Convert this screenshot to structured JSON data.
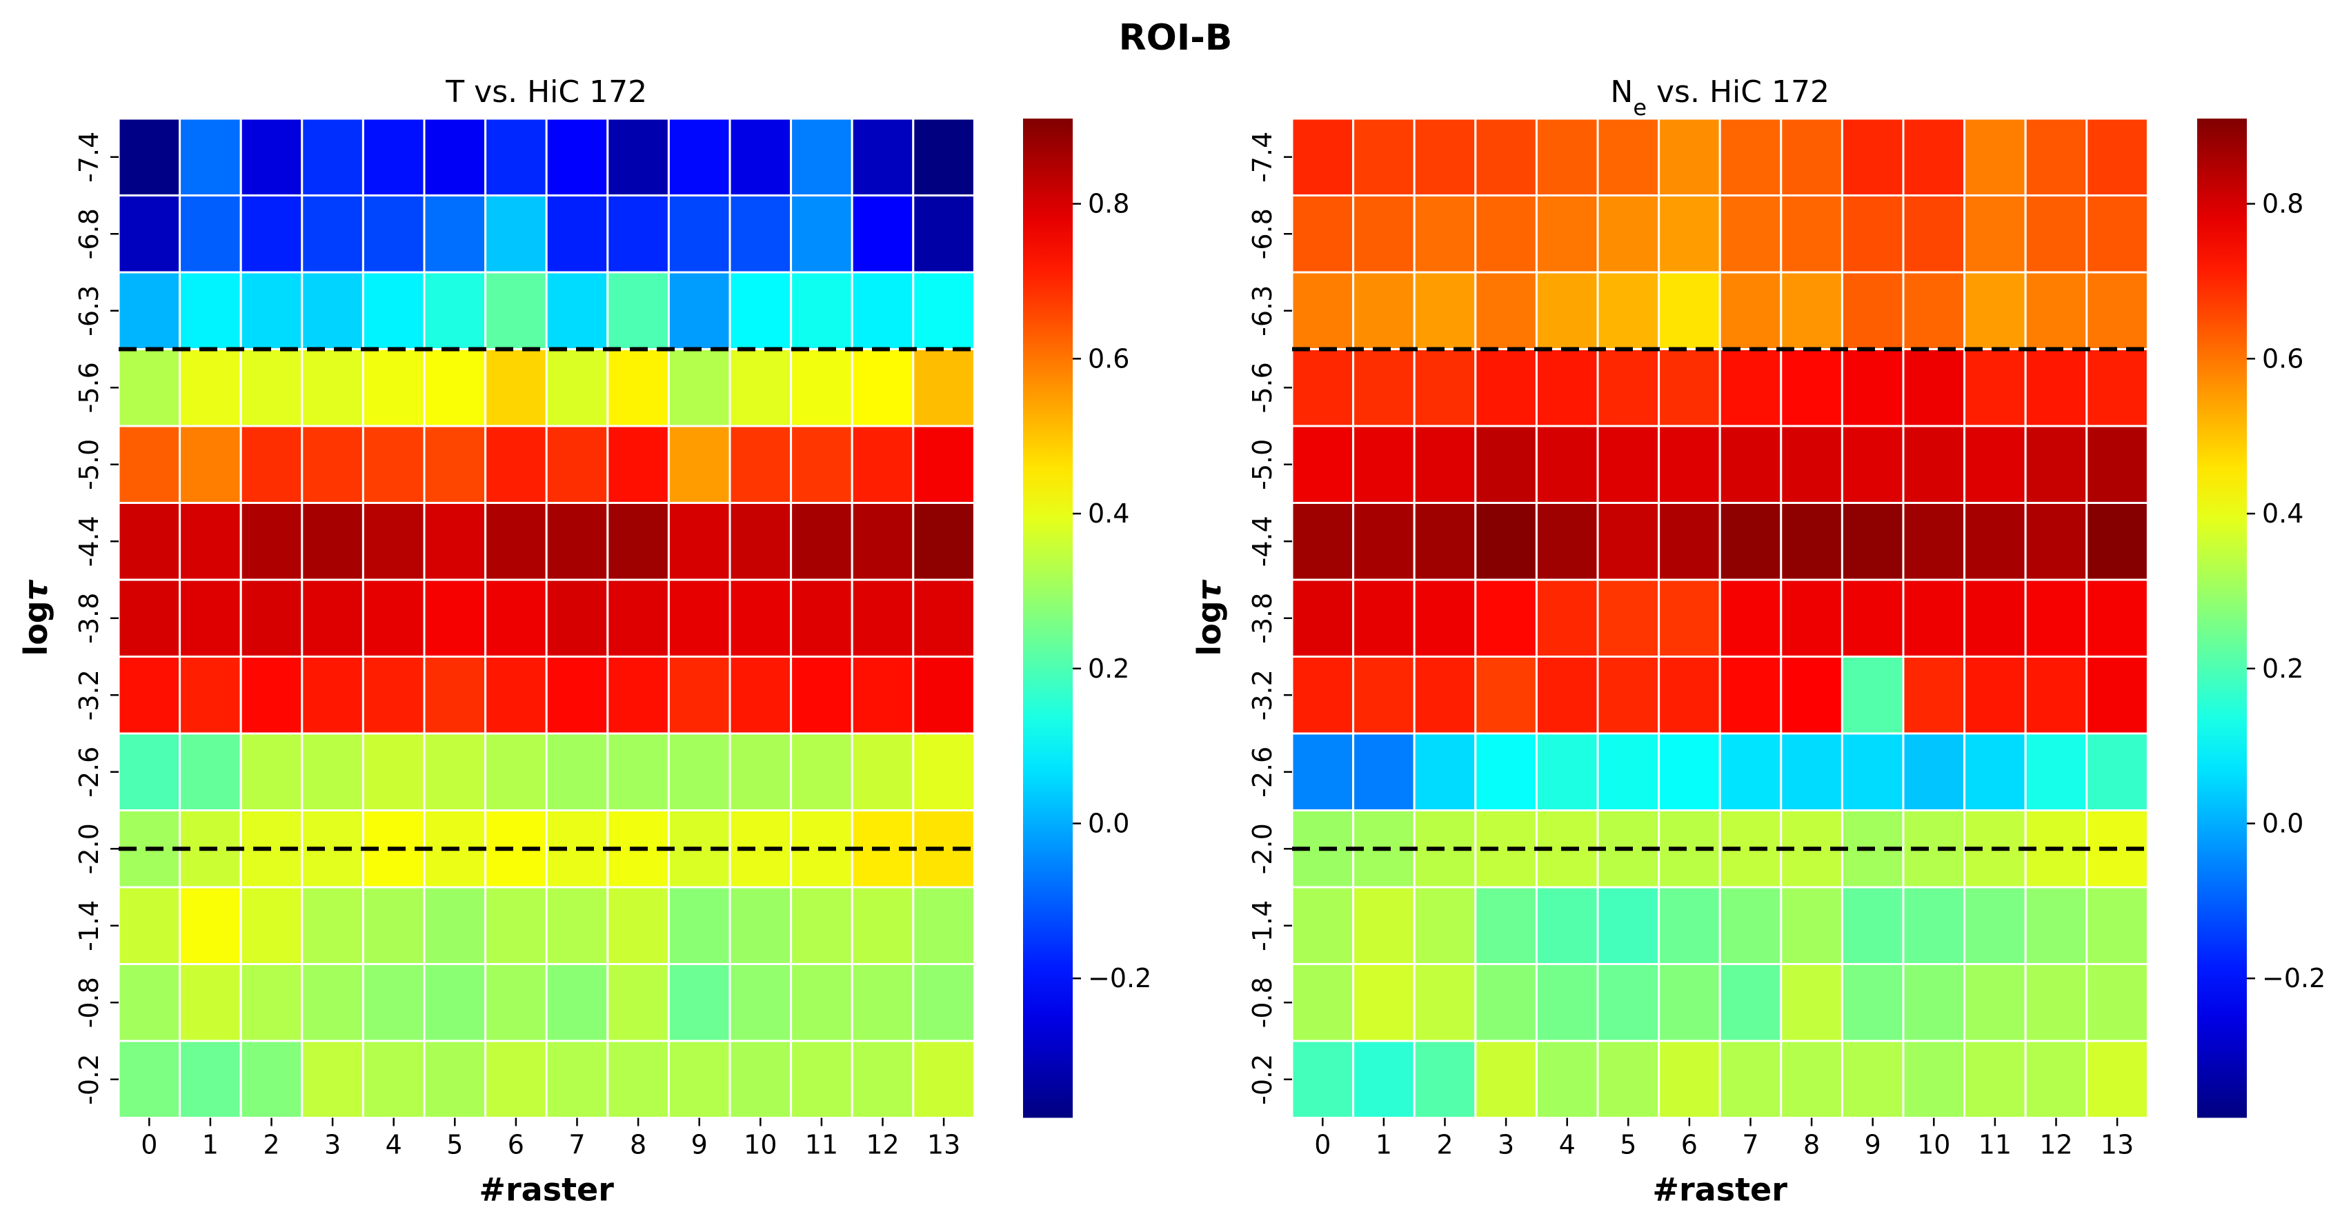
{
  "figure_title": "ROI-B",
  "chart_data": [
    {
      "type": "heatmap",
      "title": "T vs. HiC 172",
      "title_parts": [
        "T",
        "",
        " vs. HiC 172"
      ],
      "xlabel": "#raster",
      "ylabel_main": "log",
      "ylabel_symbol": "τ",
      "x": [
        "0",
        "1",
        "2",
        "3",
        "4",
        "5",
        "6",
        "7",
        "8",
        "9",
        "10",
        "11",
        "12",
        "13"
      ],
      "y": [
        "-7.4",
        "-6.8",
        "-6.3",
        "-5.6",
        "-5.0",
        "-4.4",
        "-3.8",
        "-3.2",
        "-2.6",
        "-2.0",
        "-1.4",
        "-0.8",
        "-0.2"
      ],
      "hlines_between_rows": [
        3,
        9.5
      ],
      "colorbar": {
        "colormap": "jet",
        "vmin": -0.38,
        "vmax": 0.91,
        "ticks": [
          -0.2,
          0.0,
          0.2,
          0.4,
          0.6,
          0.8
        ],
        "tick_labels": [
          "−0.2",
          "0.0",
          "0.2",
          "0.4",
          "0.6",
          "0.8"
        ]
      },
      "values": [
        [
          -0.37,
          -0.08,
          -0.26,
          -0.16,
          -0.2,
          -0.23,
          -0.17,
          -0.22,
          -0.32,
          -0.21,
          -0.25,
          -0.06,
          -0.3,
          -0.38
        ],
        [
          -0.3,
          -0.1,
          -0.18,
          -0.14,
          -0.13,
          -0.08,
          0.03,
          -0.18,
          -0.17,
          -0.13,
          -0.12,
          -0.04,
          -0.22,
          -0.33
        ],
        [
          0.01,
          0.09,
          0.06,
          0.05,
          0.09,
          0.14,
          0.22,
          0.06,
          0.2,
          -0.02,
          0.1,
          0.12,
          0.09,
          0.11
        ],
        [
          0.33,
          0.4,
          0.39,
          0.39,
          0.41,
          0.42,
          0.48,
          0.38,
          0.44,
          0.33,
          0.39,
          0.41,
          0.43,
          0.51
        ],
        [
          0.63,
          0.59,
          0.69,
          0.68,
          0.67,
          0.66,
          0.71,
          0.69,
          0.73,
          0.55,
          0.68,
          0.68,
          0.71,
          0.76
        ],
        [
          0.81,
          0.8,
          0.85,
          0.86,
          0.84,
          0.8,
          0.85,
          0.86,
          0.87,
          0.8,
          0.82,
          0.86,
          0.85,
          0.89
        ],
        [
          0.8,
          0.79,
          0.8,
          0.79,
          0.78,
          0.76,
          0.77,
          0.8,
          0.79,
          0.78,
          0.78,
          0.79,
          0.79,
          0.79
        ],
        [
          0.73,
          0.71,
          0.74,
          0.72,
          0.71,
          0.69,
          0.72,
          0.74,
          0.73,
          0.7,
          0.72,
          0.74,
          0.73,
          0.76
        ],
        [
          0.2,
          0.23,
          0.34,
          0.34,
          0.36,
          0.35,
          0.33,
          0.31,
          0.31,
          0.31,
          0.32,
          0.33,
          0.36,
          0.39
        ],
        [
          0.31,
          0.36,
          0.39,
          0.39,
          0.42,
          0.4,
          0.42,
          0.4,
          0.41,
          0.38,
          0.4,
          0.4,
          0.45,
          0.46
        ],
        [
          0.36,
          0.42,
          0.38,
          0.33,
          0.32,
          0.3,
          0.33,
          0.33,
          0.36,
          0.28,
          0.3,
          0.33,
          0.34,
          0.31
        ],
        [
          0.31,
          0.36,
          0.33,
          0.31,
          0.29,
          0.28,
          0.31,
          0.28,
          0.34,
          0.24,
          0.29,
          0.31,
          0.31,
          0.29
        ],
        [
          0.26,
          0.24,
          0.27,
          0.35,
          0.33,
          0.32,
          0.35,
          0.33,
          0.33,
          0.33,
          0.32,
          0.33,
          0.33,
          0.36
        ]
      ]
    },
    {
      "type": "heatmap",
      "title": "Ne vs. HiC 172",
      "title_parts": [
        "N",
        "e",
        " vs. HiC 172"
      ],
      "xlabel": "#raster",
      "ylabel_main": "log",
      "ylabel_symbol": "τ",
      "x": [
        "0",
        "1",
        "2",
        "3",
        "4",
        "5",
        "6",
        "7",
        "8",
        "9",
        "10",
        "11",
        "12",
        "13"
      ],
      "y": [
        "-7.4",
        "-6.8",
        "-6.3",
        "-5.6",
        "-5.0",
        "-4.4",
        "-3.8",
        "-3.2",
        "-2.6",
        "-2.0",
        "-1.4",
        "-0.8",
        "-0.2"
      ],
      "hlines_between_rows": [
        3,
        9.5
      ],
      "colorbar": {
        "colormap": "jet",
        "vmin": -0.38,
        "vmax": 0.91,
        "ticks": [
          -0.2,
          0.0,
          0.2,
          0.4,
          0.6,
          0.8
        ],
        "tick_labels": [
          "−0.2",
          "0.0",
          "0.2",
          "0.4",
          "0.6",
          "0.8"
        ]
      },
      "values": [
        [
          0.7,
          0.67,
          0.67,
          0.66,
          0.63,
          0.62,
          0.57,
          0.62,
          0.63,
          0.7,
          0.7,
          0.59,
          0.64,
          0.67
        ],
        [
          0.64,
          0.63,
          0.61,
          0.62,
          0.6,
          0.57,
          0.55,
          0.61,
          0.62,
          0.65,
          0.66,
          0.6,
          0.63,
          0.64
        ],
        [
          0.59,
          0.57,
          0.55,
          0.6,
          0.54,
          0.52,
          0.46,
          0.58,
          0.56,
          0.63,
          0.62,
          0.55,
          0.59,
          0.6
        ],
        [
          0.7,
          0.69,
          0.69,
          0.72,
          0.72,
          0.7,
          0.69,
          0.73,
          0.74,
          0.76,
          0.77,
          0.71,
          0.72,
          0.71
        ],
        [
          0.77,
          0.78,
          0.79,
          0.83,
          0.8,
          0.79,
          0.79,
          0.8,
          0.8,
          0.79,
          0.8,
          0.79,
          0.82,
          0.85
        ],
        [
          0.87,
          0.86,
          0.87,
          0.9,
          0.87,
          0.82,
          0.85,
          0.89,
          0.89,
          0.89,
          0.87,
          0.86,
          0.85,
          0.9
        ],
        [
          0.79,
          0.78,
          0.77,
          0.74,
          0.7,
          0.68,
          0.68,
          0.76,
          0.77,
          0.77,
          0.77,
          0.77,
          0.76,
          0.76
        ],
        [
          0.71,
          0.7,
          0.71,
          0.67,
          0.71,
          0.7,
          0.71,
          0.74,
          0.75,
          0.21,
          0.7,
          0.72,
          0.72,
          0.76
        ],
        [
          -0.05,
          -0.06,
          0.06,
          0.11,
          0.14,
          0.12,
          0.11,
          0.07,
          0.06,
          0.06,
          0.03,
          0.06,
          0.13,
          0.17
        ],
        [
          0.3,
          0.31,
          0.34,
          0.35,
          0.35,
          0.34,
          0.34,
          0.35,
          0.35,
          0.31,
          0.33,
          0.35,
          0.38,
          0.4
        ],
        [
          0.32,
          0.36,
          0.33,
          0.24,
          0.21,
          0.19,
          0.24,
          0.27,
          0.31,
          0.23,
          0.24,
          0.26,
          0.29,
          0.31
        ],
        [
          0.32,
          0.37,
          0.35,
          0.28,
          0.25,
          0.24,
          0.27,
          0.23,
          0.35,
          0.26,
          0.28,
          0.31,
          0.32,
          0.32
        ],
        [
          0.19,
          0.16,
          0.21,
          0.36,
          0.31,
          0.32,
          0.36,
          0.33,
          0.33,
          0.33,
          0.31,
          0.33,
          0.33,
          0.37
        ]
      ]
    }
  ]
}
